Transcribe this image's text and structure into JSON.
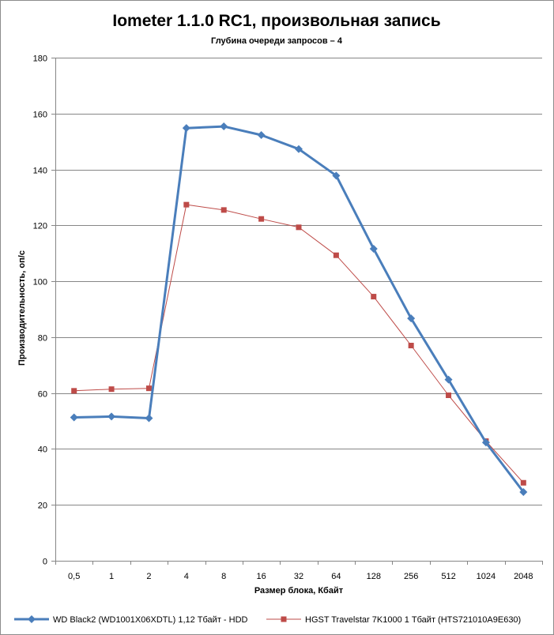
{
  "chart_data": {
    "type": "line",
    "title": "Iometer 1.1.0 RC1, произвольная запись",
    "subtitle": "Глубина очереди запросов – 4",
    "xlabel": "Размер блока, Кбайт",
    "ylabel": "Производительность, оп/с",
    "categories": [
      "0,5",
      "1",
      "2",
      "4",
      "8",
      "16",
      "32",
      "64",
      "128",
      "256",
      "512",
      "1024",
      "2048"
    ],
    "ylim": [
      0,
      180
    ],
    "yticks": [
      "0",
      "20",
      "40",
      "60",
      "80",
      "100",
      "120",
      "140",
      "160",
      "180"
    ],
    "grid": true,
    "legend_position": "bottom",
    "series": [
      {
        "name": "WD Black2 (WD1001X06XDTL) 1,12 Тбайт - HDD",
        "color": "#4a7ebb",
        "marker": "diamond",
        "values": [
          51.3,
          51.6,
          51.0,
          154.8,
          155.4,
          152.3,
          147.3,
          137.8,
          111.6,
          86.7,
          64.8,
          42.3,
          24.6
        ]
      },
      {
        "name": "HGST Travelstar 7K1000 1 Тбайт (HTS721010A9E630)",
        "color": "#be4b48",
        "marker": "square",
        "values": [
          60.8,
          61.4,
          61.7,
          127.4,
          125.5,
          122.3,
          119.3,
          109.3,
          94.5,
          77.0,
          59.2,
          42.8,
          27.9
        ]
      }
    ]
  }
}
